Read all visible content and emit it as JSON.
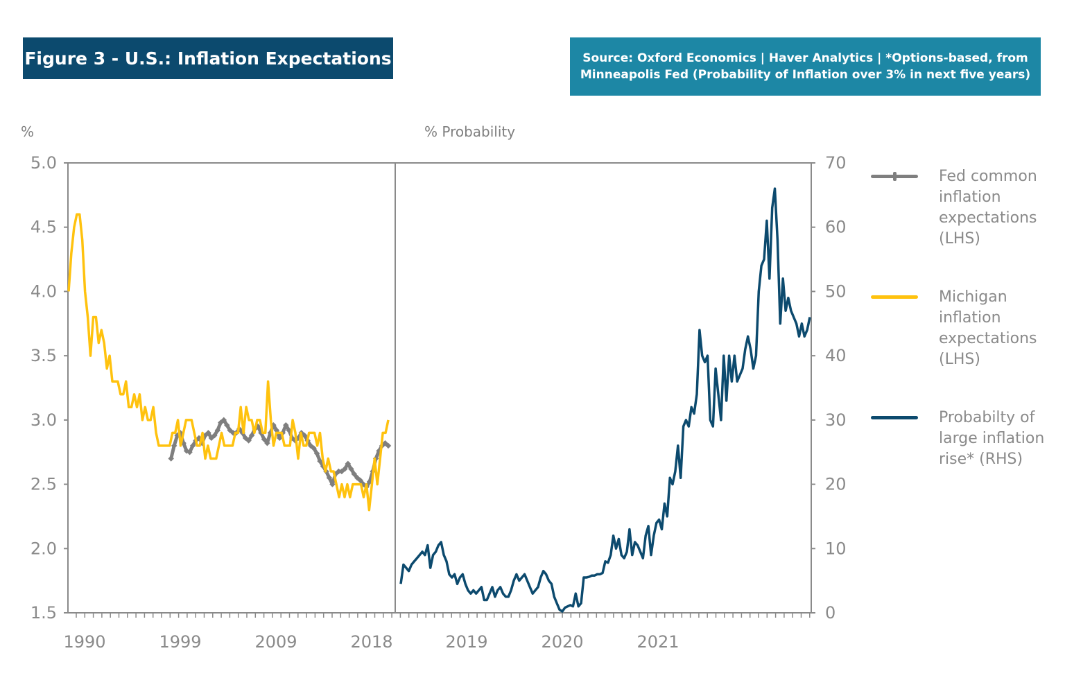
{
  "title": "Figure 3 - U.S.: Inflation Expectations",
  "source": {
    "line1": "Source: Oxford Economics | Haver Analytics | *Options-based, from",
    "line2": "Minneapolis Fed (Probability of Inflation over 3% in next five years)"
  },
  "colors": {
    "title_bg": "#0c4a6e",
    "source_bg": "#1d87a5",
    "fed": "#7f7f7f",
    "michigan": "#ffc20e",
    "probability": "#0c4a6e",
    "axis": "#8a8a8a"
  },
  "chart_data": {
    "type": "line",
    "left_axis": {
      "label": "%",
      "range": [
        1.5,
        5.0
      ],
      "ticks": [
        "5.0",
        "4.5",
        "4.0",
        "3.5",
        "3.0",
        "2.5",
        "2.0",
        "1.5"
      ]
    },
    "right_axis": {
      "label": "% Probability",
      "range": [
        0,
        70
      ],
      "ticks": [
        "70",
        "60",
        "50",
        "40",
        "30",
        "20",
        "10",
        "0"
      ]
    },
    "left_panel_x_ticks": [
      "1990",
      "1999",
      "2009",
      "2018"
    ],
    "right_panel_x_ticks": [
      "2019",
      "2020",
      "2021"
    ],
    "grid": false,
    "legend_position": "right",
    "series": [
      {
        "name": "Fed common inflation expectations (LHS)",
        "axis": "left",
        "panel": "left",
        "color": "#7f7f7f",
        "values": [
          null,
          null,
          null,
          null,
          null,
          null,
          null,
          null,
          null,
          null,
          null,
          null,
          null,
          null,
          null,
          null,
          null,
          null,
          null,
          null,
          null,
          null,
          null,
          null,
          null,
          null,
          null,
          null,
          null,
          null,
          null,
          null,
          null,
          2.7,
          2.8,
          2.88,
          2.9,
          2.82,
          2.76,
          2.75,
          2.8,
          2.84,
          2.86,
          2.82,
          2.88,
          2.9,
          2.86,
          2.88,
          2.92,
          2.98,
          3.0,
          2.96,
          2.92,
          2.9,
          2.9,
          2.93,
          2.9,
          2.86,
          2.84,
          2.88,
          2.93,
          2.95,
          2.9,
          2.85,
          2.82,
          2.9,
          2.96,
          2.92,
          2.86,
          2.9,
          2.96,
          2.92,
          2.86,
          2.84,
          2.86,
          2.9,
          2.88,
          2.84,
          2.8,
          2.78,
          2.74,
          2.68,
          2.64,
          2.6,
          2.55,
          2.5,
          2.58,
          2.6,
          2.6,
          2.62,
          2.66,
          2.62,
          2.58,
          2.55,
          2.53,
          2.5,
          2.48,
          2.52,
          2.6,
          2.7,
          2.76,
          2.8,
          2.82,
          2.8
        ]
      },
      {
        "name": "Michigan inflation expectations (LHS)",
        "axis": "left",
        "panel": "left",
        "color": "#ffc20e",
        "values": [
          4.0,
          4.3,
          4.5,
          4.6,
          4.6,
          4.4,
          4.0,
          3.8,
          3.5,
          3.8,
          3.8,
          3.6,
          3.7,
          3.6,
          3.4,
          3.5,
          3.3,
          3.3,
          3.3,
          3.2,
          3.2,
          3.3,
          3.1,
          3.1,
          3.2,
          3.1,
          3.2,
          3.0,
          3.1,
          3.0,
          3.0,
          3.1,
          2.9,
          2.8,
          2.8,
          2.8,
          2.8,
          2.8,
          2.9,
          2.9,
          3.0,
          2.8,
          2.9,
          3.0,
          3.0,
          3.0,
          2.9,
          2.8,
          2.8,
          2.9,
          2.7,
          2.8,
          2.7,
          2.7,
          2.7,
          2.8,
          2.9,
          2.8,
          2.8,
          2.8,
          2.8,
          2.9,
          2.9,
          3.1,
          2.9,
          3.1,
          3.0,
          3.0,
          2.9,
          3.0,
          3.0,
          2.9,
          2.9,
          3.3,
          3.0,
          2.8,
          2.9,
          2.9,
          2.9,
          2.8,
          2.8,
          2.8,
          3.0,
          2.9,
          2.7,
          2.9,
          2.8,
          2.8,
          2.9,
          2.9,
          2.9,
          2.8,
          2.9,
          2.7,
          2.6,
          2.7,
          2.6,
          2.6,
          2.5,
          2.4,
          2.5,
          2.4,
          2.5,
          2.4,
          2.5,
          2.5,
          2.5,
          2.5,
          2.4,
          2.5,
          2.3,
          2.5,
          2.7,
          2.5,
          2.7,
          2.9,
          2.9,
          3.0
        ]
      },
      {
        "name": "Probabilty of large inflation rise* (RHS)",
        "axis": "right",
        "panel": "right",
        "color": "#0c4a6e",
        "values": [
          4.5,
          7.5,
          7,
          6.5,
          7.5,
          8,
          8.5,
          9,
          9.5,
          9,
          10.5,
          7,
          9,
          9.5,
          10.5,
          11,
          9,
          8,
          6,
          5.5,
          6,
          4.5,
          5.5,
          6,
          4.5,
          3.5,
          3,
          3.5,
          3,
          3.5,
          4,
          2,
          2,
          3,
          4,
          2.5,
          3.5,
          4,
          3,
          2.5,
          2.5,
          3.5,
          5,
          6,
          5,
          5.5,
          6,
          5,
          4,
          3,
          3.5,
          4,
          5.5,
          6.5,
          6,
          5,
          4.5,
          2.5,
          1.5,
          0.5,
          0.2,
          0.8,
          1,
          1.2,
          1,
          3,
          1,
          1.5,
          5.5,
          5.5,
          5.6,
          5.8,
          5.8,
          6,
          6,
          6.2,
          8,
          7.8,
          9,
          12,
          10,
          11.5,
          9,
          8.5,
          9.5,
          13,
          9,
          11,
          10.5,
          9.5,
          8.5,
          12,
          13.5,
          9,
          12,
          14,
          14.5,
          13,
          17,
          15,
          21,
          20,
          22,
          26,
          21,
          29,
          30,
          29,
          32,
          31,
          34,
          44,
          40,
          39,
          40,
          30,
          29,
          38,
          34,
          30,
          40,
          33,
          40,
          36,
          40,
          36,
          37,
          38,
          41,
          43,
          41,
          38,
          40,
          50,
          54,
          55,
          61,
          52,
          63,
          66,
          58,
          45,
          52,
          47,
          49,
          47,
          46,
          45,
          43,
          45,
          43,
          44,
          46
        ]
      }
    ]
  },
  "legend": [
    {
      "label": "Fed common inflation expectations (LHS)",
      "color": "#7f7f7f",
      "marker": "plus"
    },
    {
      "label": "Michigan inflation expectations (LHS)",
      "color": "#ffc20e"
    },
    {
      "label": "Probabilty of large inflation rise* (RHS)",
      "color": "#0c4a6e"
    }
  ]
}
